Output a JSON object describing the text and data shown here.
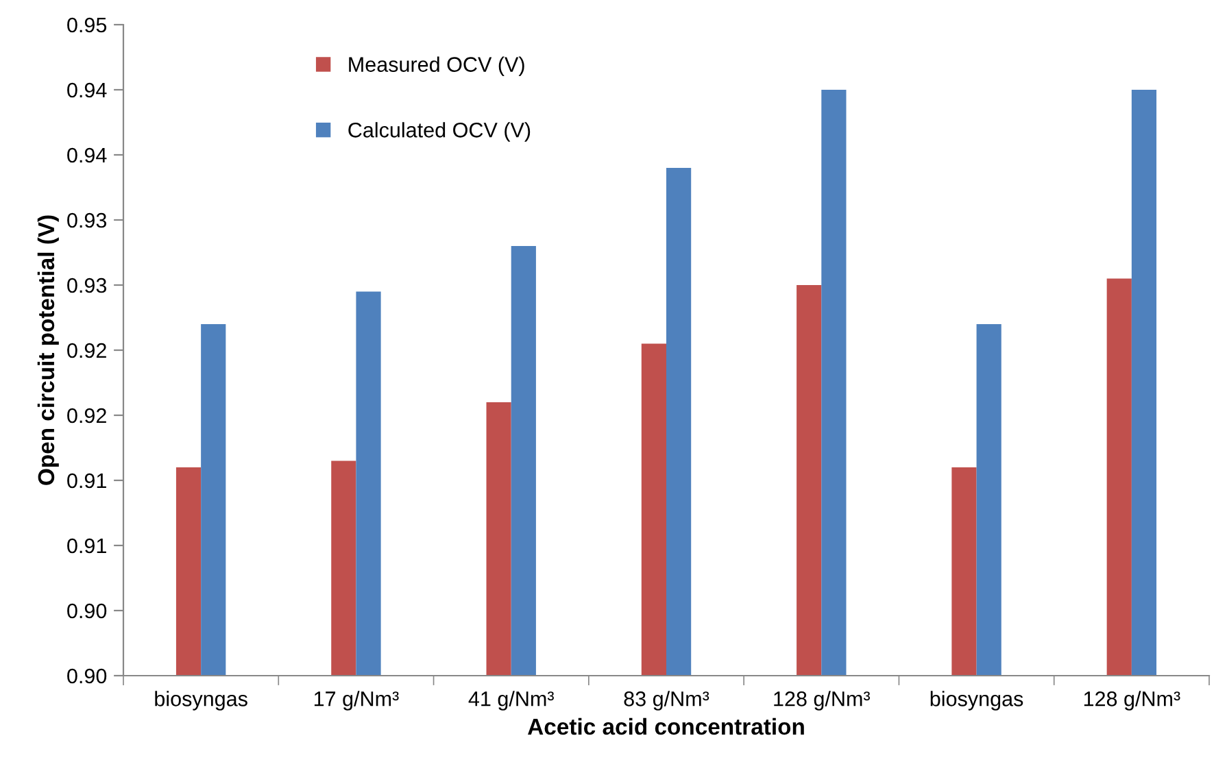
{
  "chart_data": {
    "type": "bar",
    "xlabel": "Acetic acid concentration",
    "ylabel": "Open circuit potential (V)",
    "categories": [
      "biosyngas",
      "17 g/Nm³",
      "41 g/Nm³",
      "83 g/Nm³",
      "128 g/Nm³",
      "biosyngas",
      "128 g/Nm³"
    ],
    "series": [
      {
        "name": "Measured OCV (V)",
        "color": "#c0504d",
        "values": [
          0.916,
          0.9165,
          0.921,
          0.9255,
          0.93,
          0.916,
          0.9305
        ]
      },
      {
        "name": "Calculated OCV (V)",
        "color": "#4f81bd",
        "values": [
          0.927,
          0.9295,
          0.933,
          0.939,
          0.945,
          0.927,
          0.945
        ]
      }
    ],
    "ylim": [
      0.9,
      0.95
    ],
    "yticks": [
      {
        "value": 0.9,
        "label": "0.90"
      },
      {
        "value": 0.905,
        "label": "0.90"
      },
      {
        "value": 0.91,
        "label": "0.91"
      },
      {
        "value": 0.915,
        "label": "0.91"
      },
      {
        "value": 0.92,
        "label": "0.92"
      },
      {
        "value": 0.925,
        "label": "0.92"
      },
      {
        "value": 0.93,
        "label": "0.93"
      },
      {
        "value": 0.935,
        "label": "0.93"
      },
      {
        "value": 0.94,
        "label": "0.94"
      },
      {
        "value": 0.945,
        "label": "0.94"
      },
      {
        "value": 0.95,
        "label": "0.95"
      }
    ],
    "grid": false,
    "legend": "top left"
  }
}
